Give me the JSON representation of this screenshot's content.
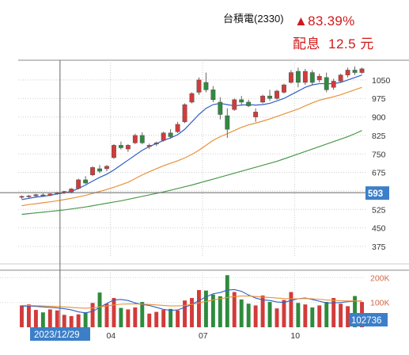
{
  "header": {
    "title": "台積電(2330)",
    "change": "▲83.39%",
    "dividend_label": "配息",
    "dividend_value": "12.5 元"
  },
  "colors": {
    "up": "#d23b3b",
    "down": "#2e8b3e",
    "ma_short": "#2f5fc4",
    "ma_mid": "#e8923a",
    "ma_long": "#4a9a4a",
    "badge": "#3c7fc8",
    "volume_label": "#d06a4a"
  },
  "chart_data": [
    {
      "type": "candlestick",
      "title": "",
      "xlabel": "",
      "ylabel": "",
      "ylim": [
        330,
        1130
      ],
      "y_ticks": [
        1050,
        975,
        900,
        825,
        750,
        675,
        600,
        525,
        450,
        375
      ],
      "x_ticks": [
        {
          "label": "04",
          "index": 13
        },
        {
          "label": "07",
          "index": 26
        },
        {
          "label": "10",
          "index": 39
        }
      ],
      "crosshair": {
        "index": 5,
        "value": 593,
        "date_label": "2023/12/29"
      },
      "grid": true,
      "ohlc": [
        [
          575,
          582,
          568,
          578
        ],
        [
          578,
          584,
          572,
          580
        ],
        [
          580,
          588,
          576,
          585
        ],
        [
          584,
          590,
          578,
          582
        ],
        [
          582,
          590,
          579,
          588
        ],
        [
          588,
          596,
          584,
          593
        ],
        [
          593,
          600,
          588,
          598
        ],
        [
          596,
          612,
          590,
          608
        ],
        [
          610,
          650,
          606,
          645
        ],
        [
          645,
          660,
          628,
          632
        ],
        [
          665,
          700,
          660,
          695
        ],
        [
          690,
          705,
          672,
          680
        ],
        [
          690,
          705,
          680,
          700
        ],
        [
          735,
          790,
          730,
          785
        ],
        [
          785,
          800,
          768,
          775
        ],
        [
          770,
          790,
          758,
          785
        ],
        [
          795,
          832,
          790,
          825
        ],
        [
          825,
          838,
          790,
          795
        ],
        [
          780,
          792,
          770,
          785
        ],
        [
          790,
          800,
          782,
          795
        ],
        [
          805,
          840,
          800,
          835
        ],
        [
          835,
          850,
          812,
          820
        ],
        [
          840,
          880,
          835,
          870
        ],
        [
          880,
          955,
          875,
          950
        ],
        [
          960,
          1000,
          955,
          995
        ],
        [
          1000,
          1060,
          990,
          1050
        ],
        [
          1040,
          1080,
          1000,
          1010
        ],
        [
          1010,
          1025,
          960,
          970
        ],
        [
          960,
          980,
          890,
          910
        ],
        [
          905,
          935,
          815,
          850
        ],
        [
          930,
          975,
          925,
          970
        ],
        [
          970,
          985,
          950,
          960
        ],
        [
          960,
          970,
          940,
          945
        ],
        [
          900,
          935,
          880,
          920
        ],
        [
          960,
          990,
          955,
          985
        ],
        [
          985,
          1010,
          965,
          975
        ],
        [
          975,
          1010,
          970,
          1005
        ],
        [
          1000,
          1035,
          995,
          1030
        ],
        [
          1040,
          1090,
          1035,
          1080
        ],
        [
          1085,
          1100,
          1020,
          1040
        ],
        [
          1040,
          1095,
          1030,
          1085
        ],
        [
          1080,
          1090,
          1030,
          1040
        ],
        [
          1050,
          1075,
          1040,
          1065
        ],
        [
          1060,
          1080,
          1000,
          1010
        ],
        [
          1020,
          1055,
          1010,
          1045
        ],
        [
          1045,
          1075,
          1040,
          1070
        ],
        [
          1070,
          1100,
          1060,
          1090
        ],
        [
          1090,
          1105,
          1070,
          1080
        ],
        [
          1080,
          1100,
          1075,
          1095
        ]
      ],
      "ma": [
        {
          "values": [
            565,
            570,
            575,
            578,
            582,
            588,
            592,
            598,
            610,
            624,
            640,
            655,
            668,
            685,
            705,
            725,
            745,
            765,
            780,
            792,
            805,
            815,
            828,
            850,
            880,
            910,
            935,
            950,
            955,
            950,
            945,
            948,
            950,
            948,
            950,
            955,
            965,
            975,
            990,
            1005,
            1020,
            1030,
            1035,
            1035,
            1035,
            1040,
            1050,
            1060,
            1070
          ]
        },
        {
          "values": [
            540,
            545,
            548,
            552,
            556,
            560,
            565,
            570,
            576,
            582,
            590,
            598,
            606,
            615,
            625,
            635,
            650,
            665,
            678,
            690,
            702,
            712,
            722,
            734,
            748,
            765,
            785,
            805,
            820,
            832,
            845,
            858,
            868,
            875,
            883,
            892,
            902,
            912,
            922,
            932,
            945,
            957,
            968,
            975,
            982,
            990,
            1000,
            1010,
            1020
          ]
        },
        {
          "values": [
            505,
            508,
            511,
            514,
            517,
            520,
            523,
            527,
            531,
            535,
            540,
            545,
            550,
            555,
            560,
            566,
            572,
            578,
            584,
            590,
            596,
            603,
            610,
            617,
            624,
            632,
            640,
            648,
            656,
            664,
            672,
            680,
            688,
            696,
            704,
            712,
            720,
            730,
            740,
            750,
            760,
            770,
            780,
            790,
            800,
            810,
            820,
            832,
            845
          ]
        }
      ]
    },
    {
      "type": "bar",
      "title": "",
      "xlabel": "",
      "ylabel": "",
      "y_ticks": [
        "200K",
        "100K"
      ],
      "last_value": "102736",
      "volumes": [
        88,
        92,
        70,
        60,
        72,
        68,
        50,
        45,
        52,
        60,
        98,
        140,
        95,
        118,
        78,
        72,
        80,
        102,
        55,
        62,
        70,
        74,
        68,
        108,
        118,
        150,
        148,
        132,
        125,
        210,
        142,
        112,
        95,
        88,
        128,
        102,
        76,
        110,
        142,
        98,
        92,
        80,
        88,
        102,
        118,
        95,
        85,
        126,
        102
      ],
      "up": [
        true,
        true,
        true,
        false,
        true,
        true,
        true,
        true,
        true,
        false,
        true,
        false,
        true,
        true,
        false,
        true,
        true,
        false,
        true,
        true,
        true,
        false,
        true,
        true,
        true,
        true,
        false,
        false,
        false,
        false,
        true,
        false,
        false,
        true,
        true,
        false,
        true,
        true,
        true,
        false,
        true,
        false,
        true,
        false,
        true,
        true,
        true,
        false,
        true
      ],
      "ma": [
        {
          "values": [
            85,
            86,
            84,
            82,
            80,
            78,
            75,
            70,
            62,
            58,
            64,
            80,
            96,
            110,
            112,
            108,
            98,
            92,
            88,
            80,
            72,
            68,
            70,
            80,
            92,
            108,
            122,
            135,
            140,
            150,
            152,
            145,
            130,
            118,
            110,
            108,
            102,
            100,
            108,
            115,
            118,
            112,
            105,
            98,
            98,
            100,
            103,
            105,
            106
          ]
        },
        {
          "values": [
            88,
            88,
            87,
            86,
            85,
            84,
            82,
            80,
            78,
            77,
            78,
            82,
            86,
            90,
            93,
            94,
            94,
            93,
            92,
            90,
            88,
            86,
            86,
            88,
            92,
            98,
            104,
            110,
            115,
            120,
            124,
            126,
            126,
            124,
            122,
            120,
            118,
            116,
            115,
            115,
            116,
            115,
            113,
            110,
            108,
            107,
            106,
            106,
            106
          ]
        }
      ]
    }
  ]
}
